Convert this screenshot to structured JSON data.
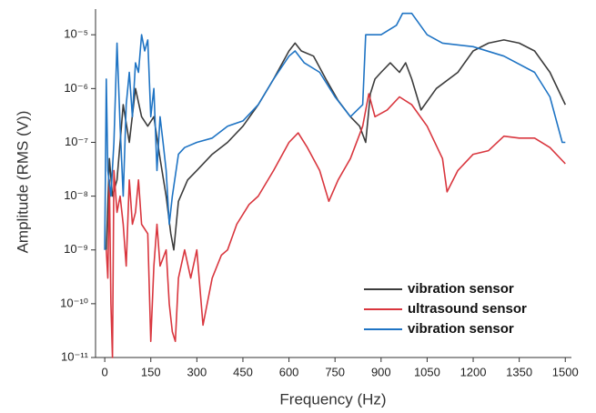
{
  "chart_data": {
    "type": "line",
    "x_label": "Frequency (Hz)",
    "y_label": "Amplitude (RMS (V))",
    "xlim": [
      -30,
      1520
    ],
    "xticks": [
      0,
      150,
      300,
      450,
      600,
      750,
      900,
      1050,
      1200,
      1350,
      1500
    ],
    "ylim": [
      1e-11,
      3e-05
    ],
    "ylog": true,
    "yticks": [
      {
        "value": 1e-11,
        "label": "10⁻¹¹"
      },
      {
        "value": 1e-10,
        "label": "10⁻¹⁰"
      },
      {
        "value": 1e-09,
        "label": "10⁻⁹"
      },
      {
        "value": 1e-08,
        "label": "10⁻⁸"
      },
      {
        "value": 1e-07,
        "label": "10⁻⁷"
      },
      {
        "value": 1e-06,
        "label": "10⁻⁶"
      },
      {
        "value": 1e-05,
        "label": "10⁻⁵"
      }
    ],
    "legend": "lower right",
    "series": [
      {
        "name": "vibration sensor",
        "color": "#3c3c3c",
        "x": [
          5,
          15,
          25,
          40,
          60,
          80,
          100,
          120,
          140,
          160,
          180,
          200,
          215,
          225,
          240,
          270,
          300,
          350,
          400,
          450,
          500,
          550,
          600,
          620,
          640,
          680,
          720,
          760,
          800,
          830,
          850,
          865,
          880,
          900,
          930,
          960,
          980,
          1000,
          1030,
          1080,
          1150,
          1200,
          1250,
          1300,
          1350,
          1400,
          1450,
          1500
        ],
        "values": [
          1e-09,
          5e-08,
          1e-08,
          2e-08,
          5e-07,
          1e-07,
          1e-06,
          3e-07,
          2e-07,
          3e-07,
          5e-08,
          1e-08,
          2e-09,
          1e-09,
          8e-09,
          2e-08,
          3e-08,
          6e-08,
          1e-07,
          2e-07,
          5e-07,
          1.5e-06,
          5e-06,
          7e-06,
          5e-06,
          4e-06,
          1.5e-06,
          6e-07,
          3e-07,
          2e-07,
          1e-07,
          8e-07,
          1.5e-06,
          2e-06,
          3e-06,
          2e-06,
          3e-06,
          1.5e-06,
          4e-07,
          1e-06,
          2e-06,
          5e-06,
          7e-06,
          8e-06,
          7e-06,
          5e-06,
          2e-06,
          5e-07
        ]
      },
      {
        "name": "ultrasound sensor",
        "color": "#d9363e",
        "x": [
          5,
          10,
          15,
          20,
          25,
          30,
          40,
          50,
          60,
          70,
          80,
          90,
          100,
          110,
          120,
          140,
          150,
          160,
          170,
          180,
          200,
          210,
          220,
          230,
          240,
          260,
          280,
          300,
          320,
          350,
          380,
          400,
          430,
          470,
          500,
          550,
          600,
          630,
          660,
          700,
          730,
          760,
          800,
          840,
          860,
          880,
          920,
          960,
          1000,
          1050,
          1100,
          1115,
          1150,
          1200,
          1250,
          1300,
          1350,
          1400,
          1450,
          1500
        ],
        "values": [
          1e-09,
          3e-10,
          2e-08,
          1e-10,
          1e-11,
          3e-08,
          5e-09,
          1e-08,
          3e-09,
          5e-10,
          2e-08,
          3e-09,
          5e-09,
          2e-08,
          3e-09,
          2e-09,
          2e-11,
          5e-10,
          3e-09,
          5e-10,
          1e-09,
          1e-10,
          3e-11,
          2e-11,
          3e-10,
          1e-09,
          3e-10,
          1e-09,
          4e-11,
          3e-10,
          8e-10,
          1e-09,
          3e-09,
          7e-09,
          1e-08,
          3e-08,
          1e-07,
          1.5e-07,
          8e-08,
          3e-08,
          8e-09,
          2e-08,
          5e-08,
          2e-07,
          8e-07,
          3e-07,
          4e-07,
          7e-07,
          5e-07,
          2e-07,
          5e-08,
          1.2e-08,
          3e-08,
          6e-08,
          7e-08,
          1.3e-07,
          1.2e-07,
          1.2e-07,
          8e-08,
          4e-08
        ]
      },
      {
        "name": "vibration sensor",
        "color": "#1f74c4",
        "x": [
          0,
          5,
          10,
          20,
          30,
          40,
          50,
          60,
          70,
          80,
          90,
          100,
          110,
          120,
          130,
          140,
          150,
          160,
          170,
          180,
          190,
          200,
          210,
          220,
          240,
          260,
          300,
          350,
          400,
          450,
          500,
          550,
          600,
          620,
          650,
          700,
          750,
          800,
          840,
          850,
          900,
          950,
          970,
          1000,
          1050,
          1100,
          1200,
          1300,
          1400,
          1450,
          1490,
          1500
        ],
        "values": [
          1e-09,
          1.5e-06,
          3e-08,
          1e-08,
          1e-07,
          7e-06,
          2e-07,
          1e-08,
          5e-07,
          2e-06,
          3e-07,
          3e-06,
          2e-06,
          1e-05,
          5e-06,
          8e-06,
          3e-07,
          1e-06,
          3e-08,
          3e-07,
          1e-07,
          3e-08,
          3e-09,
          1e-08,
          6e-08,
          8e-08,
          1e-07,
          1.2e-07,
          2e-07,
          2.5e-07,
          5e-07,
          1.5e-06,
          4e-06,
          5e-06,
          3e-06,
          2e-06,
          7e-07,
          3e-07,
          5e-07,
          1e-05,
          1e-05,
          1.5e-05,
          2.5e-05,
          2.5e-05,
          1e-05,
          7e-06,
          6e-06,
          4e-06,
          2e-06,
          7e-07,
          1e-07,
          1e-07
        ]
      }
    ]
  }
}
